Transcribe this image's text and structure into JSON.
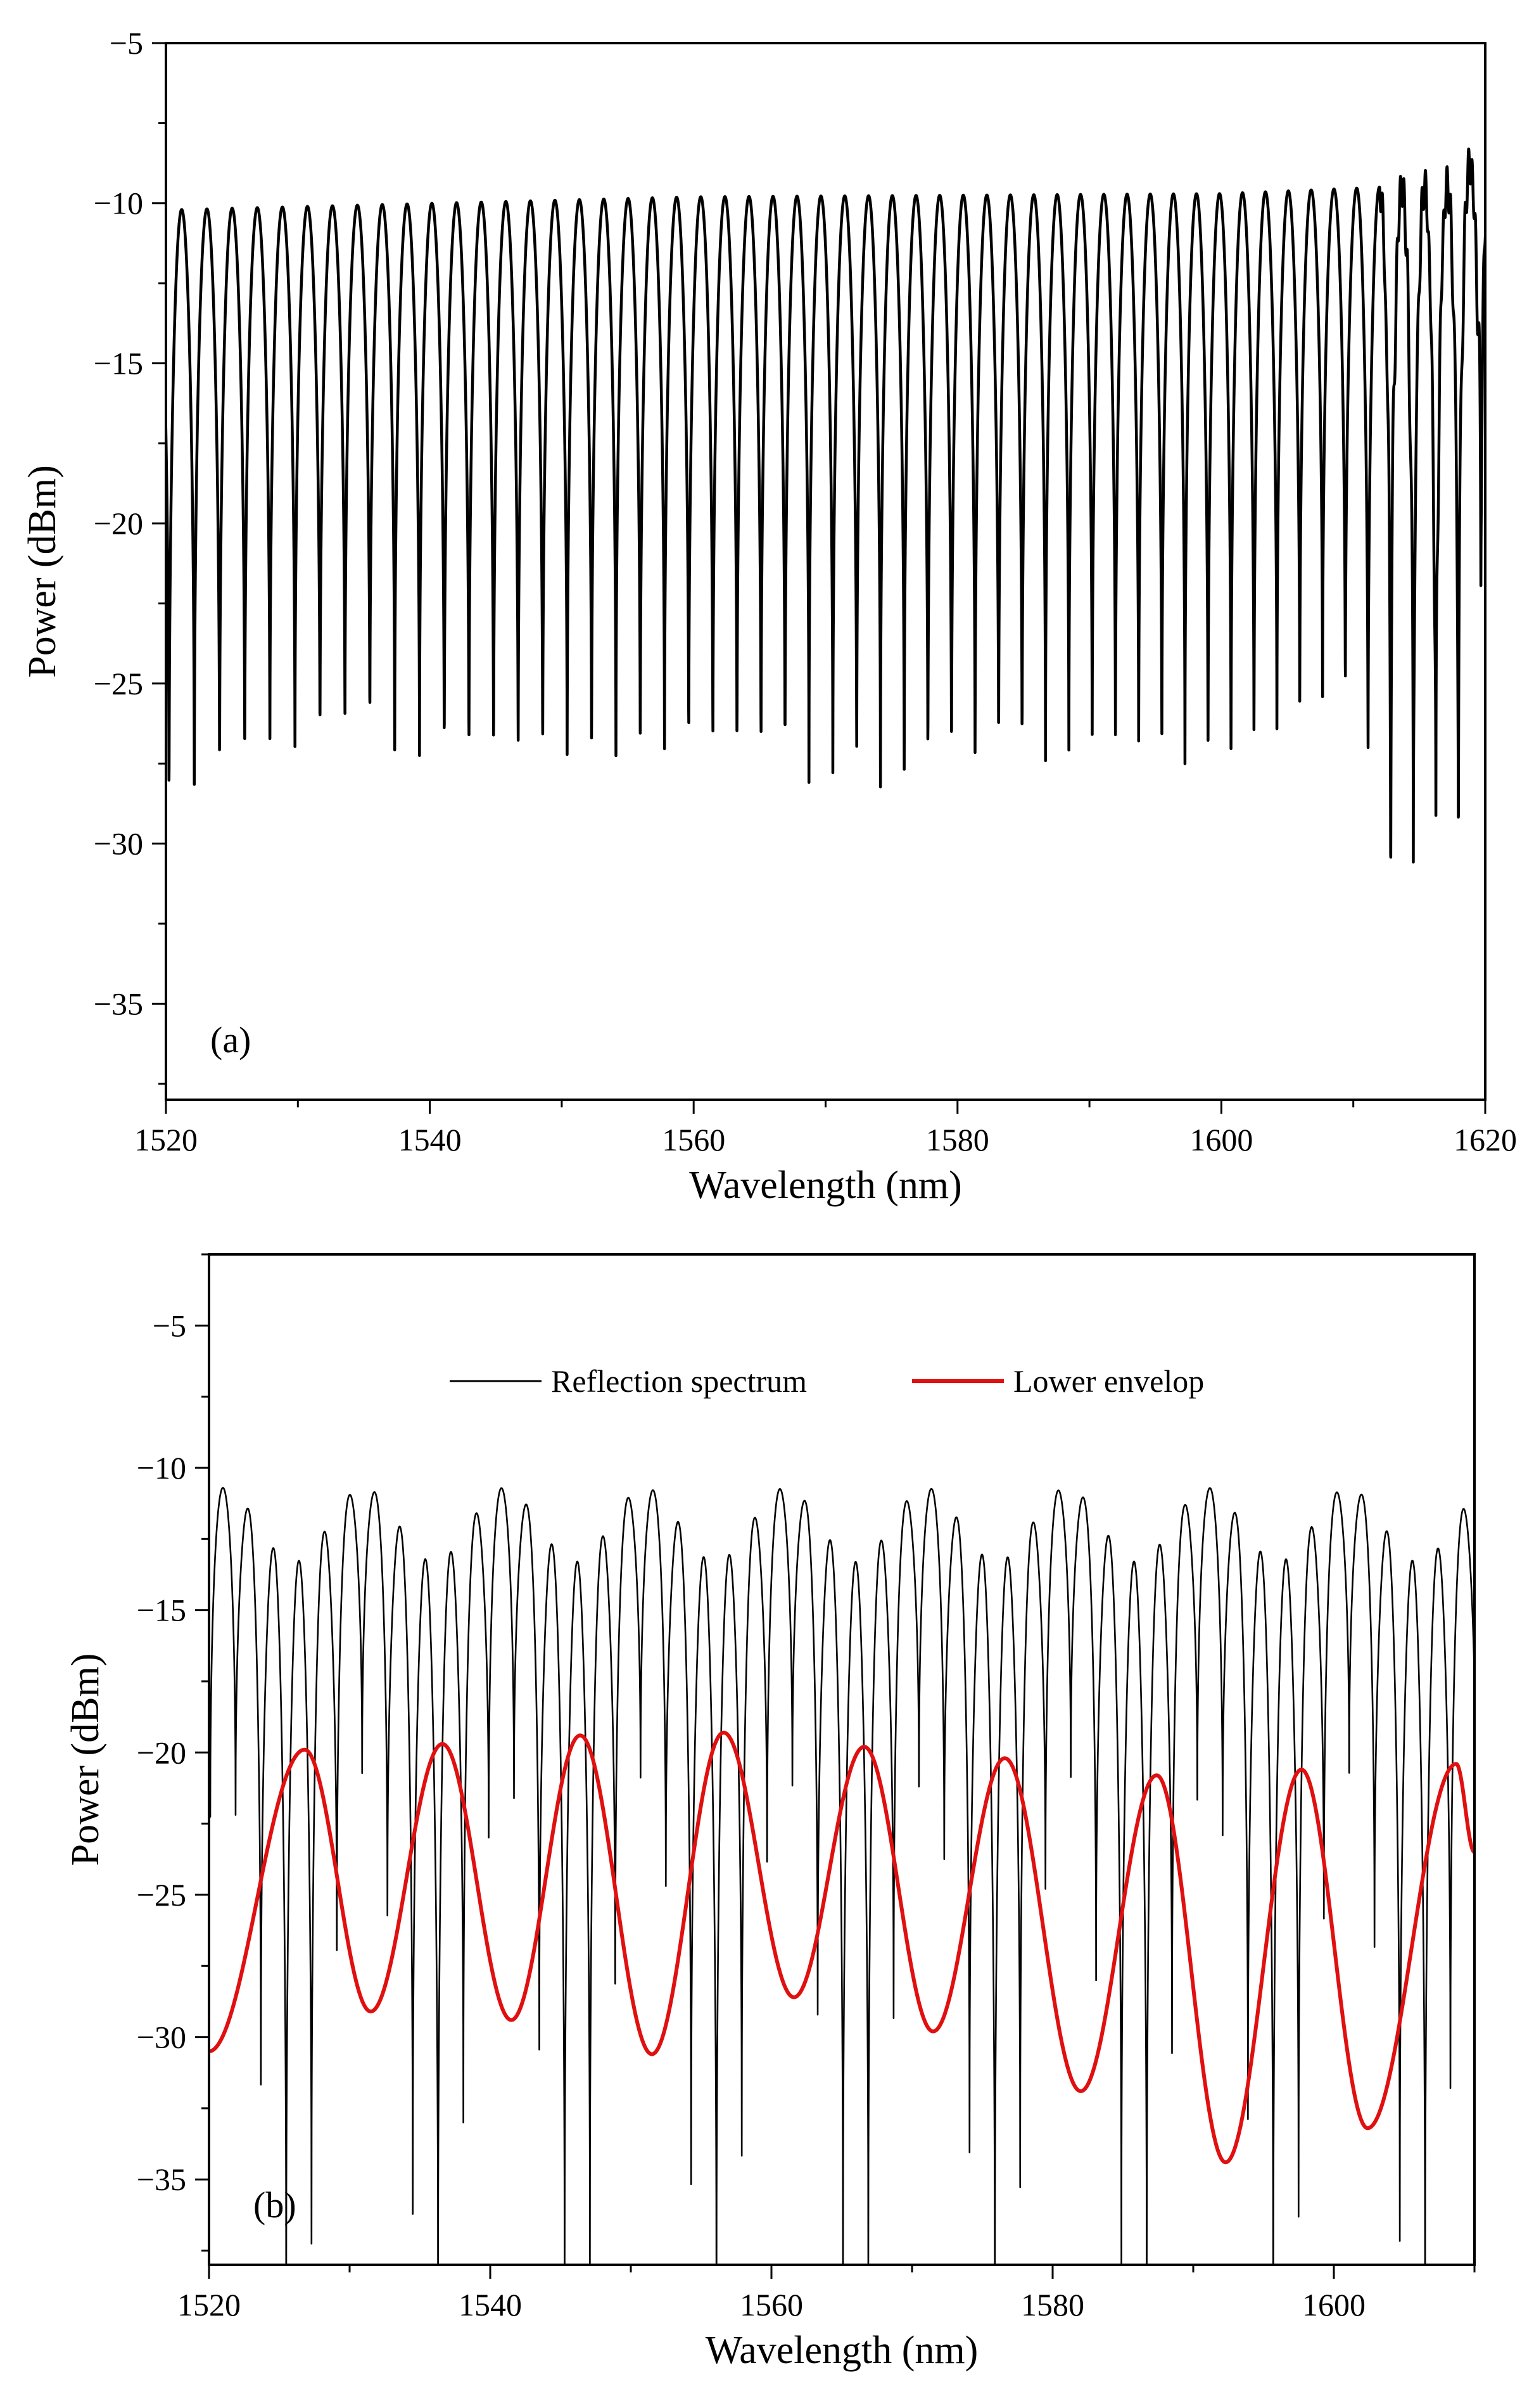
{
  "chart_data": [
    {
      "type": "line",
      "panel_label": "(a)",
      "xlabel": "Wavelength (nm)",
      "ylabel": "Power (dBm)",
      "xlim": [
        1520,
        1620
      ],
      "ylim": [
        -38,
        -5
      ],
      "xticks": [
        1520,
        1540,
        1560,
        1580,
        1600,
        1620
      ],
      "yticks": [
        -35,
        -30,
        -25,
        -20,
        -15,
        -10,
        -5
      ],
      "grid": false,
      "legend": "none",
      "series": [
        {
          "color": "#000000",
          "comb": {
            "wavelength_start": 1521.2,
            "fringe_period_nm": 1.92,
            "fringe_period_end_nm": 1.7,
            "peak_level": -9.9,
            "valley_points": [
              [
                1520.5,
                -30.2
              ],
              [
                1522.7,
                -29.2
              ],
              [
                1524.6,
                -29.3
              ],
              [
                1527,
                -28.1
              ],
              [
                1531.5,
                -28.2
              ],
              [
                1534,
                -27.4
              ],
              [
                1541,
                -28.6
              ],
              [
                1549,
                -28.6
              ],
              [
                1555,
                -28.1
              ],
              [
                1566.8,
                -28.6
              ],
              [
                1579,
                -28.9
              ],
              [
                1590,
                -28.0
              ],
              [
                1601,
                -28.6
              ],
              [
                1608.8,
                -26.0
              ],
              [
                1613.5,
                -31.7
              ],
              [
                1615.8,
                -33.3
              ],
              [
                1618.5,
                -29.6
              ],
              [
                1620,
                -20
              ]
            ],
            "peak_points": [
              [
                1521,
                -10.2
              ],
              [
                1560,
                -9.8
              ],
              [
                1600,
                -9.7
              ],
              [
                1612,
                -9.5
              ],
              [
                1617,
                -9.5
              ],
              [
                1619.8,
                -8.4
              ]
            ]
          }
        }
      ]
    },
    {
      "type": "line",
      "panel_label": "(b)",
      "xlabel": "Wavelength (nm)",
      "ylabel": "Power (dBm)",
      "xlim": [
        1520,
        1610
      ],
      "ylim": [
        -38,
        -2.5
      ],
      "xticks": [
        1520,
        1540,
        1560,
        1580,
        1600
      ],
      "yticks": [
        -35,
        -30,
        -25,
        -20,
        -15,
        -10,
        -5
      ],
      "grid": false,
      "legend": "top-center",
      "series": [
        {
          "name": "Reflection spectrum",
          "color": "#000000",
          "comb": {
            "wavelength_start": 1521.0,
            "fringe_period_nm": 1.8,
            "envelope_period_nm": 10.0,
            "envelope_phase_nm": 1521.0,
            "peak_high": -10.7,
            "peak_low": -13.3,
            "valley_drop": 17
          }
        },
        {
          "name": "Lower envelop",
          "color": "#e01010",
          "x": [
            1520,
            1526.8,
            1531.5,
            1536.6,
            1541.5,
            1546.4,
            1551.5,
            1556.6,
            1561.6,
            1566.6,
            1571.5,
            1576.6,
            1582,
            1587.4,
            1592.3,
            1597.7,
            1602.4,
            1608.7,
            1610
          ],
          "y": [
            -30.5,
            -19.9,
            -29.1,
            -19.7,
            -29.4,
            -19.4,
            -30.6,
            -19.3,
            -28.6,
            -19.8,
            -29.8,
            -20.2,
            -31.9,
            -20.8,
            -34.4,
            -20.6,
            -33.2,
            -20.4,
            -23.5
          ]
        }
      ]
    }
  ]
}
